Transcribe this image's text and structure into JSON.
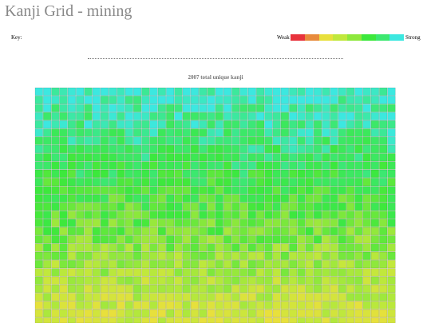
{
  "header": {
    "title": "Kanji Grid - mining"
  },
  "key": {
    "label": "Key:",
    "weak": "Weak",
    "strong": "Strong",
    "colors": [
      "#e8333c",
      "#e88b3c",
      "#e8e03c",
      "#c0e83c",
      "#8de83c",
      "#3ce83c",
      "#3ce870",
      "#3ce8e0"
    ]
  },
  "summary": "2007 total unique kanji"
}
